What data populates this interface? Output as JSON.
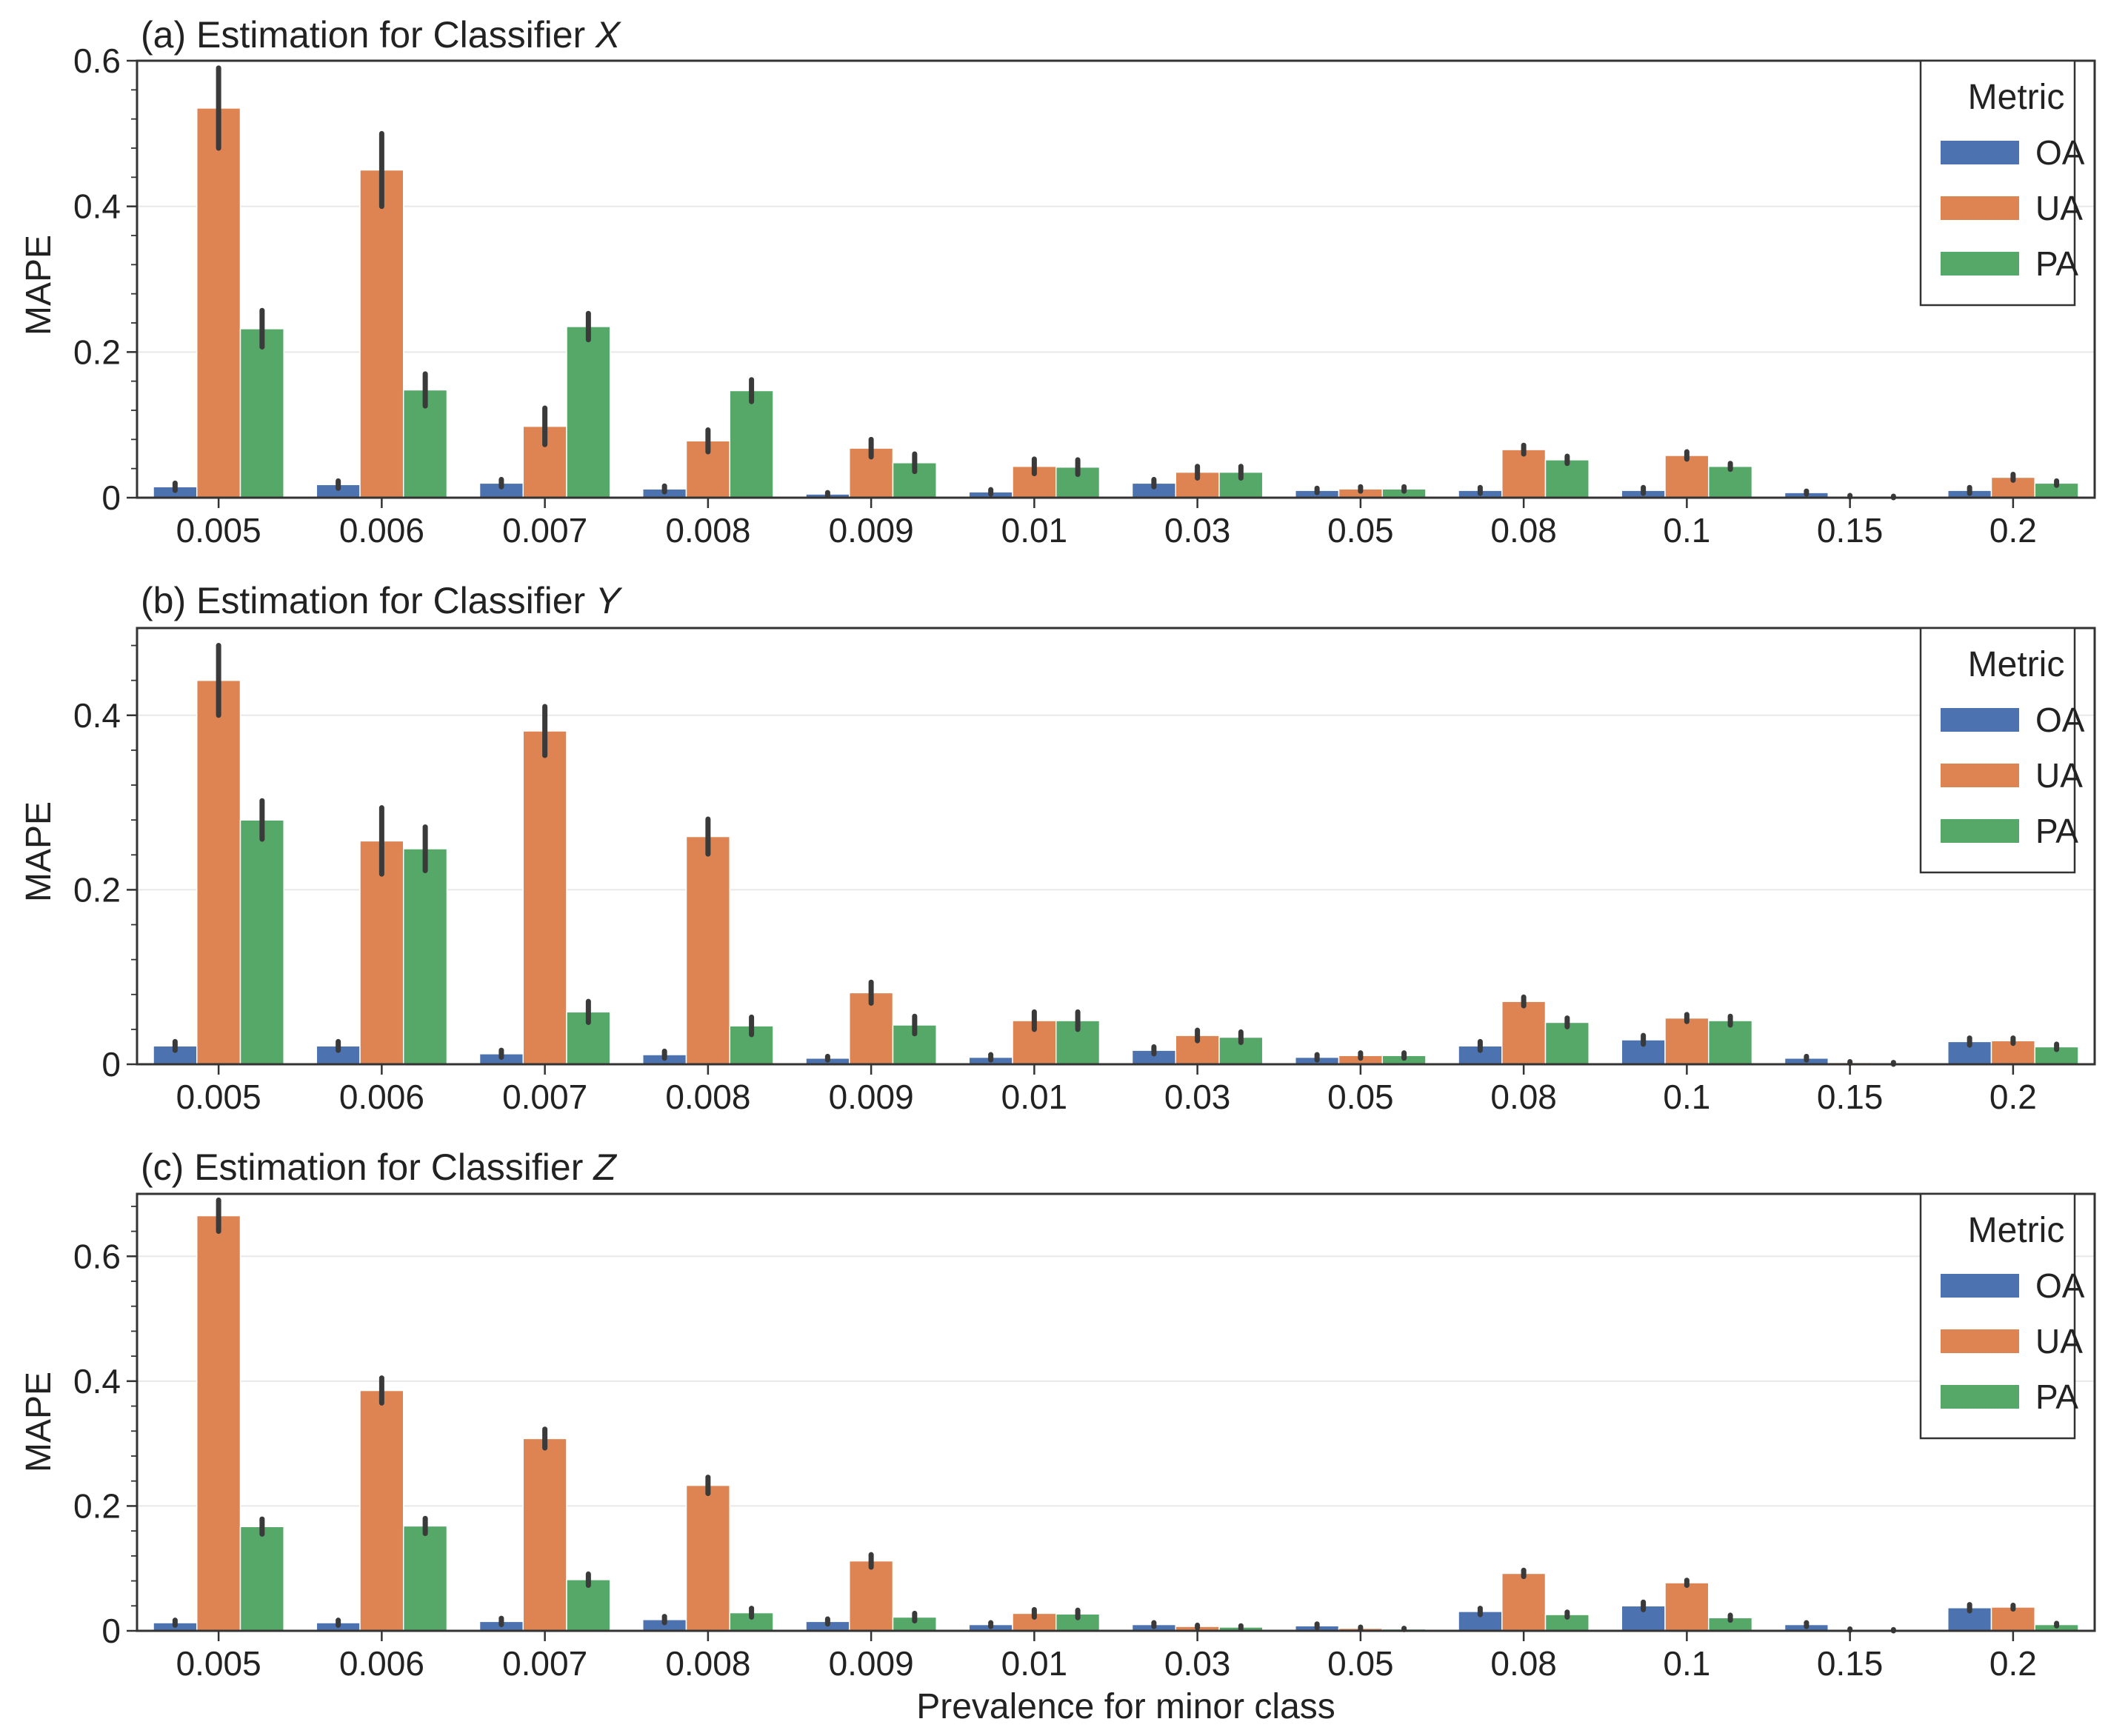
{
  "figure": {
    "xlabel": "Prevalence for minor class",
    "ylabel": "MAPE"
  },
  "legend": {
    "title": "Metric",
    "entries": [
      "OA",
      "UA",
      "PA"
    ]
  },
  "colors": {
    "OA": "#4C72B0",
    "UA": "#DD8452",
    "PA": "#55A868",
    "errorbar": "#3a3a3a",
    "grid": "#e8e8e8",
    "axis": "#333333"
  },
  "chart_data": [
    {
      "type": "bar",
      "title_prefix": "(a) Estimation for Classifier ",
      "title_var": "X",
      "xlabel": "",
      "ylabel": "MAPE",
      "ylim": [
        0,
        0.6
      ],
      "yticks": [
        "0",
        "0.2",
        "0.4",
        "0.6"
      ],
      "yticks_values": [
        0,
        0.2,
        0.4,
        0.6
      ],
      "categories": [
        "0.005",
        "0.006",
        "0.007",
        "0.008",
        "0.009",
        "0.01",
        "0.03",
        "0.05",
        "0.08",
        "0.1",
        "0.15",
        "0.2"
      ],
      "series": [
        {
          "name": "OA",
          "values": [
            0.015,
            0.018,
            0.02,
            0.012,
            0.005,
            0.008,
            0.02,
            0.01,
            0.01,
            0.01,
            0.007,
            0.01
          ],
          "err": [
            0.005,
            0.005,
            0.005,
            0.004,
            0.002,
            0.003,
            0.005,
            0.003,
            0.004,
            0.004,
            0.002,
            0.004
          ]
        },
        {
          "name": "UA",
          "values": [
            0.535,
            0.45,
            0.098,
            0.078,
            0.068,
            0.043,
            0.035,
            0.012,
            0.066,
            0.058,
            0.002,
            0.028
          ],
          "err": [
            0.055,
            0.05,
            0.025,
            0.015,
            0.012,
            0.01,
            0.008,
            0.003,
            0.006,
            0.005,
            0.001,
            0.004
          ]
        },
        {
          "name": "PA",
          "values": [
            0.232,
            0.148,
            0.235,
            0.147,
            0.048,
            0.042,
            0.035,
            0.012,
            0.052,
            0.043,
            0.001,
            0.02
          ],
          "err": [
            0.025,
            0.022,
            0.018,
            0.015,
            0.012,
            0.01,
            0.008,
            0.003,
            0.005,
            0.004,
            0.001,
            0.003
          ]
        }
      ]
    },
    {
      "type": "bar",
      "title_prefix": "(b) Estimation for Classifier ",
      "title_var": "Y",
      "xlabel": "",
      "ylabel": "MAPE",
      "ylim": [
        0,
        0.5
      ],
      "yticks": [
        "0",
        "0.2",
        "0.4"
      ],
      "yticks_values": [
        0,
        0.2,
        0.4
      ],
      "categories": [
        "0.005",
        "0.006",
        "0.007",
        "0.008",
        "0.009",
        "0.01",
        "0.03",
        "0.05",
        "0.08",
        "0.1",
        "0.15",
        "0.2"
      ],
      "series": [
        {
          "name": "OA",
          "values": [
            0.021,
            0.021,
            0.012,
            0.011,
            0.007,
            0.008,
            0.016,
            0.008,
            0.021,
            0.028,
            0.007,
            0.026
          ],
          "err": [
            0.005,
            0.005,
            0.004,
            0.004,
            0.002,
            0.003,
            0.004,
            0.003,
            0.005,
            0.005,
            0.002,
            0.004
          ]
        },
        {
          "name": "UA",
          "values": [
            0.44,
            0.256,
            0.382,
            0.261,
            0.082,
            0.05,
            0.033,
            0.01,
            0.072,
            0.053,
            0.002,
            0.027
          ],
          "err": [
            0.04,
            0.038,
            0.028,
            0.02,
            0.012,
            0.01,
            0.006,
            0.003,
            0.005,
            0.004,
            0.001,
            0.003
          ]
        },
        {
          "name": "PA",
          "values": [
            0.28,
            0.247,
            0.06,
            0.044,
            0.045,
            0.05,
            0.031,
            0.01,
            0.048,
            0.05,
            0.001,
            0.02
          ],
          "err": [
            0.022,
            0.025,
            0.012,
            0.01,
            0.01,
            0.01,
            0.006,
            0.003,
            0.005,
            0.005,
            0.001,
            0.003
          ]
        }
      ]
    },
    {
      "type": "bar",
      "title_prefix": "(c) Estimation for Classifier ",
      "title_var": "Z",
      "xlabel": "Prevalence for minor class",
      "ylabel": "MAPE",
      "ylim": [
        0,
        0.7
      ],
      "yticks": [
        "0",
        "0.2",
        "0.4",
        "0.6"
      ],
      "yticks_values": [
        0,
        0.2,
        0.4,
        0.6
      ],
      "categories": [
        "0.005",
        "0.006",
        "0.007",
        "0.008",
        "0.009",
        "0.01",
        "0.03",
        "0.05",
        "0.08",
        "0.1",
        "0.15",
        "0.2"
      ],
      "series": [
        {
          "name": "OA",
          "values": [
            0.013,
            0.013,
            0.015,
            0.018,
            0.015,
            0.01,
            0.01,
            0.008,
            0.031,
            0.04,
            0.01,
            0.037
          ],
          "err": [
            0.004,
            0.004,
            0.005,
            0.005,
            0.004,
            0.003,
            0.003,
            0.003,
            0.005,
            0.006,
            0.003,
            0.005
          ]
        },
        {
          "name": "UA",
          "values": [
            0.665,
            0.385,
            0.308,
            0.233,
            0.112,
            0.028,
            0.007,
            0.004,
            0.092,
            0.077,
            0.002,
            0.038
          ],
          "err": [
            0.025,
            0.02,
            0.015,
            0.013,
            0.01,
            0.006,
            0.002,
            0.002,
            0.005,
            0.004,
            0.001,
            0.003
          ]
        },
        {
          "name": "PA",
          "values": [
            0.167,
            0.168,
            0.082,
            0.029,
            0.022,
            0.027,
            0.006,
            0.003,
            0.026,
            0.021,
            0.001,
            0.01
          ],
          "err": [
            0.012,
            0.012,
            0.009,
            0.007,
            0.006,
            0.006,
            0.002,
            0.001,
            0.004,
            0.004,
            0.001,
            0.002
          ]
        }
      ]
    }
  ]
}
